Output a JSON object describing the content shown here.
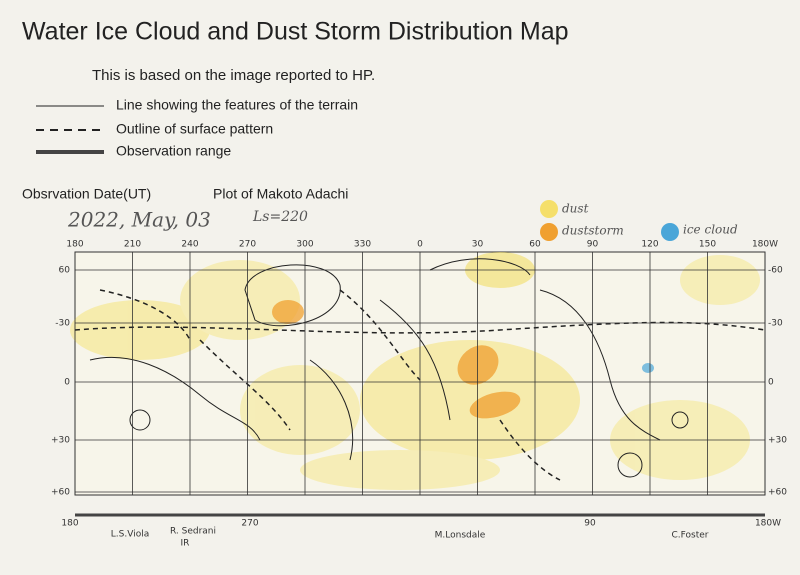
{
  "header": {
    "title": "Water Ice Cloud and Dust Storm Distribution Map",
    "subtitle": "This is based on the image reported to HP."
  },
  "legend": {
    "lines": [
      "Line showing the features of the terrain",
      "Outline of surface pattern",
      "Observation range"
    ],
    "markers": [
      "dust",
      "duststorm",
      "ice cloud"
    ]
  },
  "observation": {
    "date_label": "Obsrvation Date(UT)",
    "plot_label": "Plot of Makoto Adachi",
    "date": "2022, May, 03",
    "ls": "Ls=220"
  },
  "map": {
    "top_labels": [
      "180",
      "210",
      "240",
      "270",
      "300",
      "330",
      "0",
      "30",
      "60",
      "90",
      "120",
      "150",
      "180W"
    ],
    "left_labels": [
      "60",
      "-30",
      "0",
      "+30",
      "+60"
    ],
    "right_labels": [
      "-60",
      "-30",
      "0",
      "+30",
      "+60"
    ],
    "bottom_labels": [
      "180",
      "270",
      "90",
      "180W"
    ],
    "observers": [
      "L.S.Viola",
      "R. Sedrani",
      "IR",
      "M.Lonsdale",
      "C.Foster"
    ]
  }
}
